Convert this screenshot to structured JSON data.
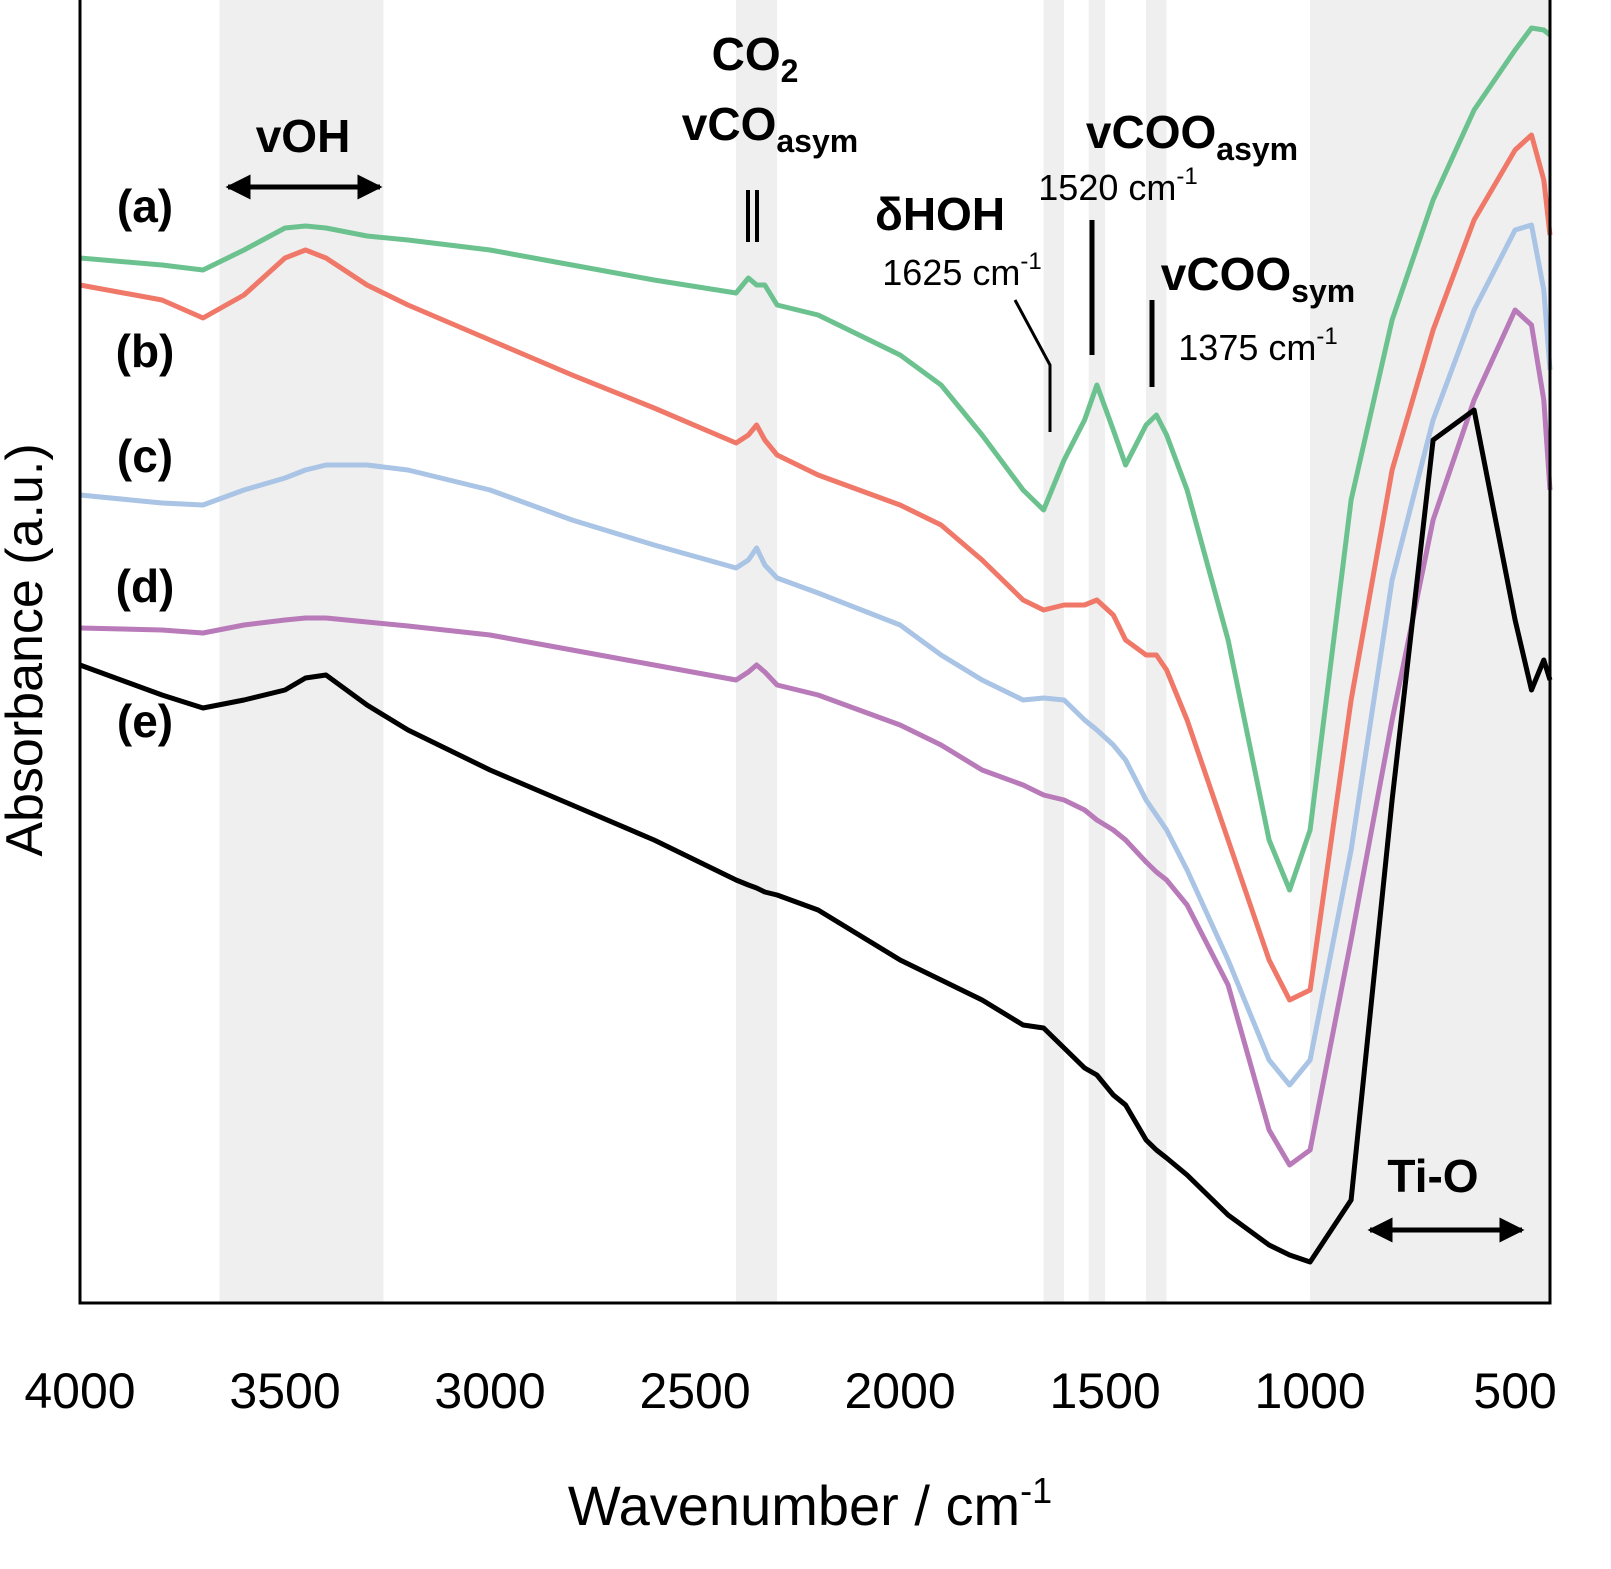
{
  "chart_data": {
    "type": "line",
    "xlabel": "Wavenumber / cm",
    "xlabel_sup": "-1",
    "ylabel": "Absorbance (a.u.)",
    "xlim": [
      4000,
      415
    ],
    "ylim": [
      0,
      1300
    ],
    "xticks": [
      4000,
      3500,
      3000,
      2500,
      2000,
      1500,
      1000,
      500
    ],
    "x": [
      4000,
      3800,
      3700,
      3600,
      3500,
      3450,
      3400,
      3300,
      3200,
      3000,
      2800,
      2600,
      2400,
      2370,
      2350,
      2330,
      2300,
      2200,
      2000,
      1900,
      1800,
      1700,
      1650,
      1600,
      1550,
      1520,
      1480,
      1450,
      1400,
      1375,
      1350,
      1300,
      1200,
      1100,
      1050,
      1000,
      900,
      800,
      700,
      600,
      500,
      460,
      430,
      415
    ],
    "series": [
      {
        "name": "(a)",
        "color": "#6cc28f",
        "values": [
          1045,
          1038,
          1033,
          1053,
          1075,
          1077,
          1075,
          1067,
          1063,
          1053,
          1038,
          1023,
          1010,
          1025,
          1018,
          1018,
          998,
          988,
          948,
          918,
          868,
          813,
          793,
          843,
          883,
          918,
          873,
          838,
          878,
          888,
          868,
          813,
          663,
          463,
          413,
          473,
          803,
          983,
          1103,
          1193,
          1253,
          1275,
          1273,
          1268
        ]
      },
      {
        "name": "(b)",
        "color": "#f07868",
        "values": [
          1018,
          1003,
          985,
          1008,
          1045,
          1053,
          1045,
          1018,
          998,
          963,
          928,
          895,
          860,
          868,
          878,
          863,
          848,
          828,
          798,
          778,
          743,
          703,
          693,
          698,
          698,
          703,
          688,
          663,
          648,
          648,
          633,
          583,
          463,
          343,
          303,
          313,
          603,
          833,
          973,
          1083,
          1153,
          1168,
          1123,
          1068
        ]
      },
      {
        "name": "(c)",
        "color": "#a9c4e4",
        "values": [
          808,
          800,
          798,
          813,
          825,
          833,
          838,
          838,
          833,
          813,
          783,
          758,
          735,
          743,
          755,
          738,
          725,
          710,
          678,
          648,
          623,
          603,
          605,
          603,
          583,
          573,
          558,
          543,
          503,
          488,
          473,
          433,
          343,
          243,
          218,
          243,
          453,
          723,
          883,
          993,
          1073,
          1078,
          1013,
          933
        ]
      },
      {
        "name": "(d)",
        "color": "#b87ab8",
        "values": [
          675,
          673,
          670,
          678,
          683,
          685,
          685,
          681,
          677,
          668,
          653,
          638,
          623,
          631,
          638,
          631,
          618,
          608,
          578,
          558,
          533,
          518,
          508,
          503,
          493,
          483,
          473,
          463,
          441,
          431,
          423,
          398,
          318,
          173,
          138,
          153,
          363,
          583,
          783,
          903,
          993,
          978,
          903,
          813
        ]
      },
      {
        "name": "(e)",
        "color": "#000000",
        "values": [
          638,
          608,
          595,
          603,
          613,
          625,
          628,
          598,
          573,
          533,
          498,
          463,
          423,
          418,
          415,
          411,
          408,
          393,
          343,
          323,
          303,
          278,
          275,
          255,
          235,
          228,
          208,
          198,
          163,
          153,
          145,
          128,
          88,
          58,
          48,
          41,
          103,
          503,
          863,
          893,
          683,
          613,
          643,
          623
        ]
      }
    ],
    "shaded_regions": [
      [
        3660,
        3260
      ],
      [
        2400,
        2300
      ],
      [
        1650,
        1600
      ],
      [
        1540,
        1500
      ],
      [
        1400,
        1350
      ],
      [
        1000,
        415
      ]
    ],
    "shade_color": "#efefef",
    "annotations": [
      {
        "text": "vOH"
      },
      {
        "text": "CO",
        "sub": "2"
      },
      {
        "text": "vCO",
        "sub": "asym"
      },
      {
        "text": "δHOH"
      },
      {
        "text": "1625 cm",
        "sup": "-1"
      },
      {
        "text": "1520 cm",
        "sup": "-1"
      },
      {
        "text": "vCOO",
        "sub": "asym"
      },
      {
        "text": "vCOO",
        "sub": "sym"
      },
      {
        "text": "1375 cm",
        "sup": "-1"
      },
      {
        "text": "Ti-O"
      }
    ]
  }
}
